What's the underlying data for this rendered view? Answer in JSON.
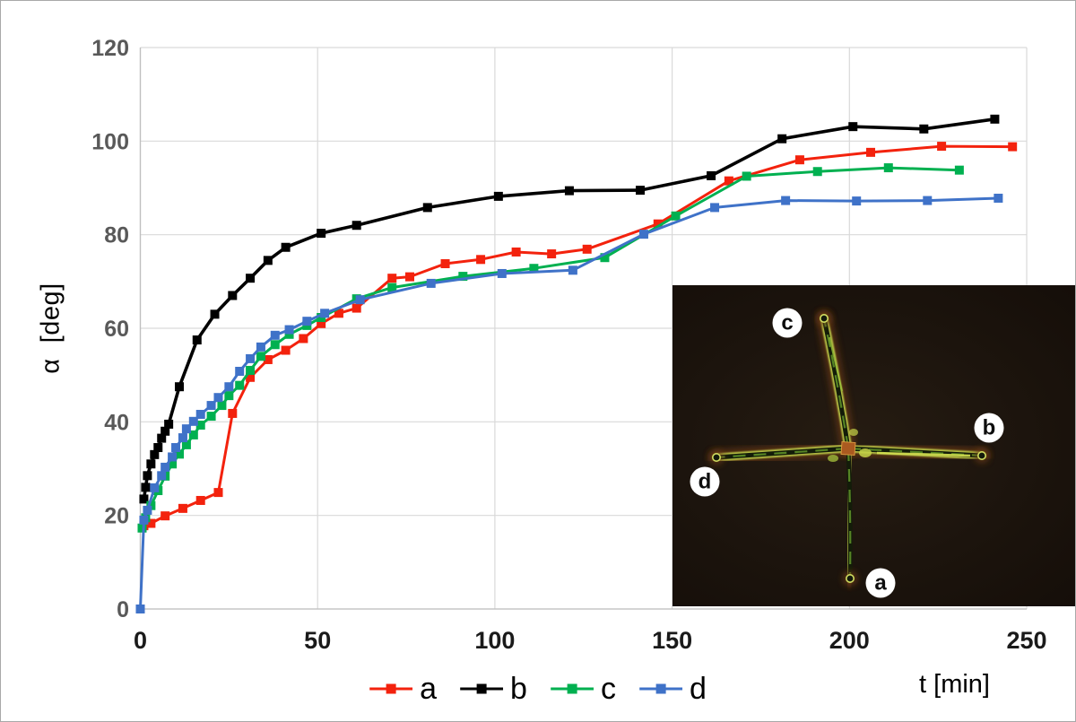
{
  "chart_data": {
    "type": "line",
    "title": "",
    "xlabel": "t [min]",
    "ylabel": "α  [deg]",
    "xlim": [
      0,
      250
    ],
    "ylim": [
      0,
      120
    ],
    "x_ticks": [
      0,
      50,
      100,
      150,
      200,
      250
    ],
    "y_ticks": [
      0,
      20,
      40,
      60,
      80,
      100,
      120
    ],
    "grid": true,
    "legend_position": "bottom-center",
    "marker": "square",
    "series": [
      {
        "name": "a",
        "color": "#f3220d",
        "points": [
          [
            1,
            17.8
          ],
          [
            3,
            18.3
          ],
          [
            7,
            19.9
          ],
          [
            12,
            21.5
          ],
          [
            17,
            23.2
          ],
          [
            22,
            24.9
          ],
          [
            26,
            41.8
          ],
          [
            31,
            49.5
          ],
          [
            36,
            53.3
          ],
          [
            41,
            55.3
          ],
          [
            46,
            57.8
          ],
          [
            51,
            61.0
          ],
          [
            56,
            63.2
          ],
          [
            61,
            64.3
          ],
          [
            71,
            70.7
          ],
          [
            76,
            71.0
          ],
          [
            86,
            73.8
          ],
          [
            96,
            74.7
          ],
          [
            106,
            76.3
          ],
          [
            116,
            75.9
          ],
          [
            126,
            76.9
          ],
          [
            146,
            82.3
          ],
          [
            166,
            91.5
          ],
          [
            186,
            96.0
          ],
          [
            206,
            97.6
          ],
          [
            226,
            98.9
          ],
          [
            246,
            98.8
          ]
        ]
      },
      {
        "name": "b",
        "color": "#000000",
        "points": [
          [
            1,
            23.5
          ],
          [
            1.5,
            26
          ],
          [
            2,
            28.5
          ],
          [
            3,
            31
          ],
          [
            4,
            33
          ],
          [
            5,
            34.5
          ],
          [
            6,
            36.5
          ],
          [
            7,
            38
          ],
          [
            8,
            39.5
          ],
          [
            11,
            47.5
          ],
          [
            16,
            57.5
          ],
          [
            21,
            63
          ],
          [
            26,
            67
          ],
          [
            31,
            70.7
          ],
          [
            36,
            74.5
          ],
          [
            41,
            77.3
          ],
          [
            51,
            80.3
          ],
          [
            61,
            82
          ],
          [
            81,
            85.8
          ],
          [
            101,
            88.2
          ],
          [
            121,
            89.4
          ],
          [
            141,
            89.5
          ],
          [
            161,
            92.6
          ],
          [
            181,
            100.5
          ],
          [
            201,
            103.1
          ],
          [
            221,
            102.6
          ],
          [
            241,
            104.7
          ]
        ]
      },
      {
        "name": "c",
        "color": "#00b050",
        "points": [
          [
            0.5,
            17.3
          ],
          [
            1.5,
            19.5
          ],
          [
            3,
            22.1
          ],
          [
            5,
            25.3
          ],
          [
            7,
            28.4
          ],
          [
            9,
            31
          ],
          [
            11,
            33.1
          ],
          [
            13,
            35.1
          ],
          [
            15,
            37.2
          ],
          [
            17,
            39.3
          ],
          [
            20,
            41.2
          ],
          [
            23,
            43.5
          ],
          [
            25,
            45.6
          ],
          [
            28,
            47.8
          ],
          [
            31,
            51
          ],
          [
            34,
            54
          ],
          [
            38,
            56.5
          ],
          [
            42,
            58.7
          ],
          [
            47,
            60.6
          ],
          [
            51,
            62.3
          ],
          [
            61,
            66.3
          ],
          [
            71,
            68.7
          ],
          [
            91,
            71.1
          ],
          [
            111,
            72.8
          ],
          [
            131,
            75.1
          ],
          [
            151,
            84
          ],
          [
            171,
            92.5
          ],
          [
            191,
            93.5
          ],
          [
            211,
            94.3
          ],
          [
            231,
            93.8
          ]
        ]
      },
      {
        "name": "d",
        "color": "#3f72c8",
        "points": [
          [
            0,
            0
          ],
          [
            1,
            19
          ],
          [
            2,
            21.1
          ],
          [
            4,
            25.9
          ],
          [
            6,
            28.5
          ],
          [
            7,
            30.3
          ],
          [
            9,
            32.5
          ],
          [
            10,
            34.5
          ],
          [
            12,
            36.6
          ],
          [
            13,
            38.5
          ],
          [
            15,
            40.1
          ],
          [
            17,
            41.6
          ],
          [
            20,
            43.5
          ],
          [
            22,
            45.2
          ],
          [
            25,
            47.5
          ],
          [
            28,
            50.8
          ],
          [
            31,
            53.5
          ],
          [
            34,
            56
          ],
          [
            38,
            58.5
          ],
          [
            42,
            59.7
          ],
          [
            47,
            61.5
          ],
          [
            52,
            63.2
          ],
          [
            62,
            66.1
          ],
          [
            82,
            69.6
          ],
          [
            102,
            71.7
          ],
          [
            122,
            72.4
          ],
          [
            142,
            80.1
          ],
          [
            162,
            85.8
          ],
          [
            182,
            87.3
          ],
          [
            202,
            87.2
          ],
          [
            222,
            87.3
          ],
          [
            242,
            87.8
          ]
        ]
      }
    ]
  },
  "legend": {
    "items": [
      {
        "label": "a",
        "color": "#f3220d"
      },
      {
        "label": "b",
        "color": "#000000"
      },
      {
        "label": "c",
        "color": "#00b050"
      },
      {
        "label": "d",
        "color": "#3f72c8"
      }
    ]
  },
  "inset": {
    "description": "dark-field micrograph of cross-shaped crystal with four labeled arms",
    "labels": [
      "a",
      "b",
      "c",
      "d"
    ]
  },
  "colors": {
    "gridline": "#d9d9d9",
    "axis": "#bfbfbf",
    "y_tick_label": "#595959",
    "x_tick_label": "#1a1a1a"
  }
}
